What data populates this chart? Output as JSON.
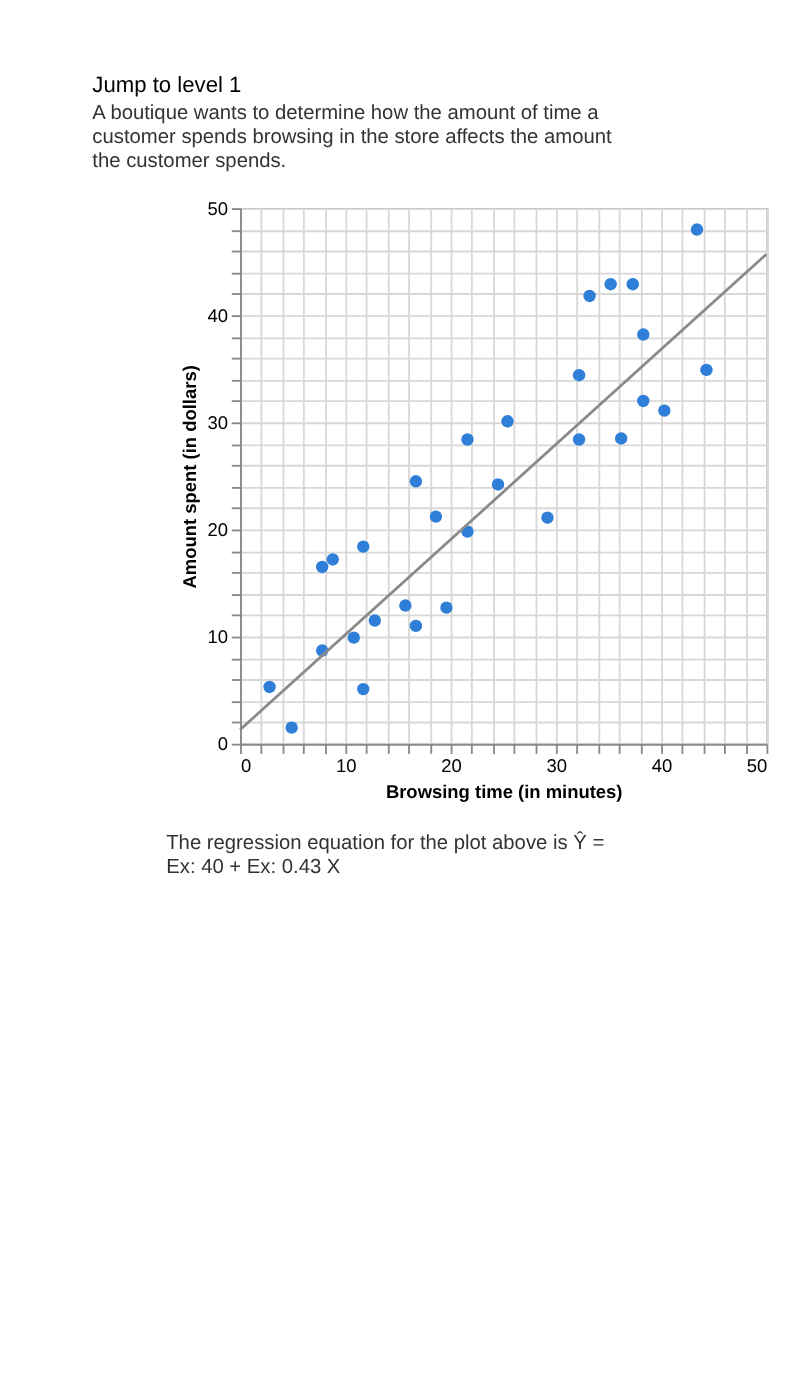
{
  "chart_data": {
    "type": "scatter",
    "title": "Jump to level 1",
    "subtitle": "A boutique wants to determine how the amount of time a customer spends browsing in the store affects the amount the customer spends.",
    "xlabel": "Browsing time (in minutes)",
    "ylabel": "Amount spent (in dollars)",
    "annotations": [
      "The regression equation for the plot above is Ŷ = Ex: 40 + Ex: 0.43 X"
    ],
    "grid": true,
    "xlim": [
      0,
      50
    ],
    "ylim": [
      0,
      50
    ],
    "xticks": [
      0,
      {
        "value": 2,
        "label": null
      },
      {
        "value": 4,
        "label": null
      },
      {
        "value": 6,
        "label": null
      },
      {
        "value": 8,
        "label": null
      },
      10,
      {
        "value": 12,
        "label": null
      },
      {
        "value": 14,
        "label": null
      },
      {
        "value": 16,
        "label": null
      },
      {
        "value": 18,
        "label": null
      },
      20,
      {
        "value": 22,
        "label": null
      },
      {
        "value": 24,
        "label": null
      },
      {
        "value": 26,
        "label": null
      },
      {
        "value": 28,
        "label": null
      },
      30,
      {
        "value": 32,
        "label": null
      },
      {
        "value": 34,
        "label": null
      },
      {
        "value": 36,
        "label": null
      },
      {
        "value": 38,
        "label": null
      },
      40,
      {
        "value": 42,
        "label": null
      },
      {
        "value": 44,
        "label": null
      },
      {
        "value": 46,
        "label": null
      },
      {
        "value": 48,
        "label": null
      },
      50
    ],
    "yticks": [
      0,
      {
        "value": 2,
        "label": null
      },
      {
        "value": 4,
        "label": null
      },
      {
        "value": 6,
        "label": null
      },
      {
        "value": 8,
        "label": null
      },
      10,
      {
        "value": 12,
        "label": null
      },
      {
        "value": 14,
        "label": null
      },
      {
        "value": 16,
        "label": null
      },
      {
        "value": 18,
        "label": null
      },
      20,
      {
        "value": 22,
        "label": null
      },
      {
        "value": 24,
        "label": null
      },
      {
        "value": 26,
        "label": null
      },
      {
        "value": 28,
        "label": null
      },
      30,
      {
        "value": 32,
        "label": null
      },
      {
        "value": 34,
        "label": null
      },
      {
        "value": 36,
        "label": null
      },
      {
        "value": 38,
        "label": null
      },
      40,
      {
        "value": 42,
        "label": null
      },
      {
        "value": 44,
        "label": null
      },
      {
        "value": 46,
        "label": null
      },
      {
        "value": 48,
        "label": null
      },
      50
    ],
    "series": [
      {
        "type": "scatter",
        "marker": "circle",
        "color": "#2f7fd8",
        "x": [
          2.8,
          4.9,
          7.8,
          7.8,
          8.8,
          10.8,
          11.7,
          11.7,
          12.8,
          15.7,
          16.7,
          16.7,
          18.6,
          19.6,
          21.6,
          21.6,
          24.5,
          25.4,
          29.2,
          32.2,
          32.2,
          33.2,
          35.2,
          36.2,
          37.3,
          38.3,
          38.3,
          40.3,
          43.4,
          44.3
        ],
        "values": [
          5.3,
          1.5,
          8.7,
          16.5,
          17.2,
          9.9,
          5.1,
          18.4,
          11.5,
          12.9,
          11,
          24.5,
          21.2,
          12.7,
          19.8,
          28.4,
          24.2,
          30.1,
          21.1,
          28.4,
          34.4,
          41.8,
          42.9,
          28.5,
          42.9,
          32,
          38.2,
          31.1,
          48,
          34.9
        ]
      },
      {
        "type": "line",
        "color": "#8a8a8a",
        "x": [
          0,
          50
        ],
        "values": [
          1.3,
          45.7
        ]
      }
    ]
  }
}
